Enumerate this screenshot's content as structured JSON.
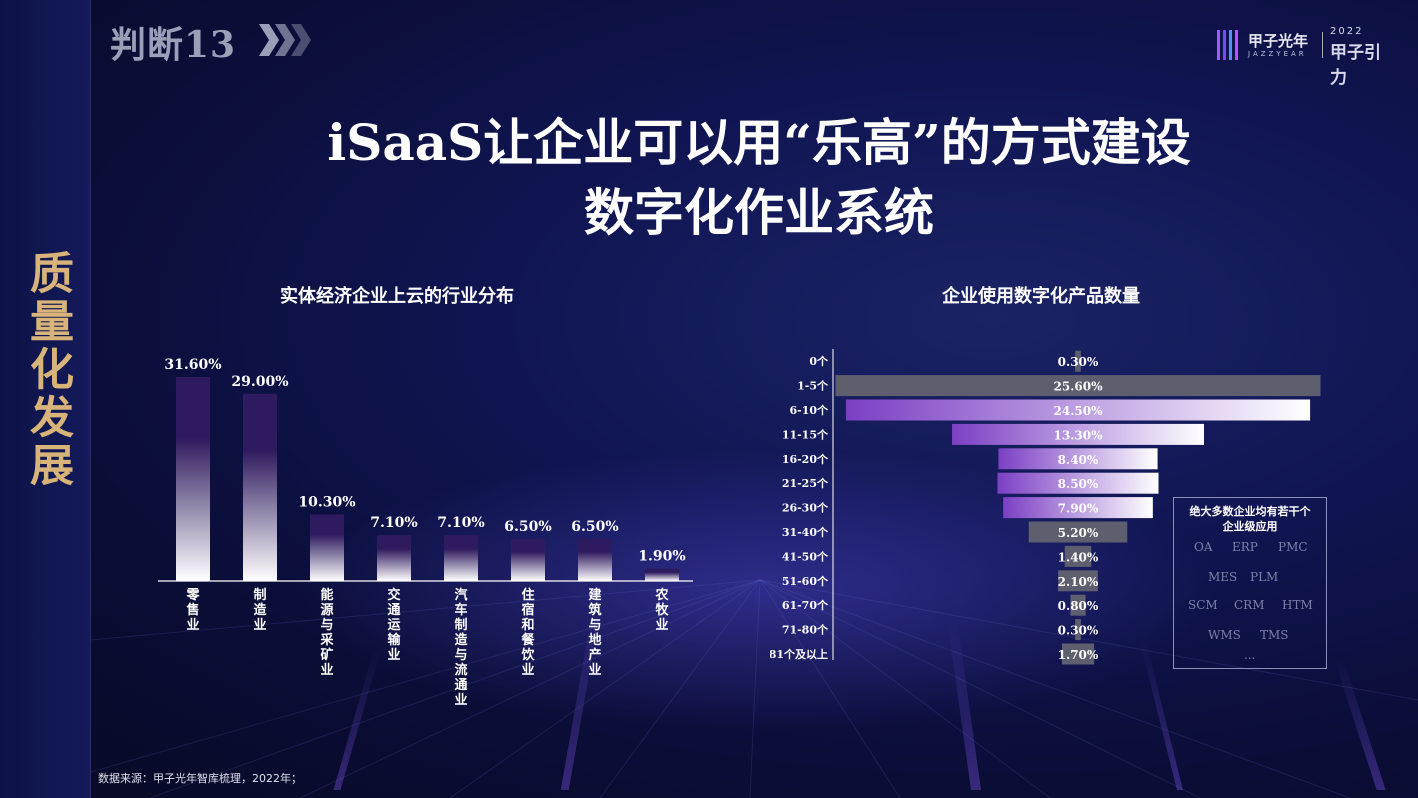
{
  "side_title": "质量化发展",
  "tag": "判断13",
  "logo": {
    "cn": "甲子光年",
    "en": "JAZZYEAR",
    "year": "2022",
    "right": "甲子引力"
  },
  "title_line1": "iSaaS让企业可以用“乐高”的方式建设",
  "title_line2": "数字化作业系统",
  "source": "数据来源：甲子光年智库梳理，2022年；",
  "legend_box": {
    "title_line1": "绝大多数企业均有若干个",
    "title_line2": "企业级应用",
    "apps": [
      "OA",
      "ERP",
      "PMC",
      "MES",
      "PLM",
      "SCM",
      "CRM",
      "HTM",
      "WMS",
      "TMS",
      "..."
    ]
  },
  "chart_data": [
    {
      "type": "bar",
      "title": "实体经济企业上云的行业分布",
      "categories": [
        "零售业",
        "制造业",
        "能源与采矿业",
        "交通运输业",
        "汽车制造与流通业",
        "住宿和餐饮业",
        "建筑与地产业",
        "农牧业"
      ],
      "values": [
        31.6,
        29.0,
        10.3,
        7.1,
        7.1,
        6.5,
        6.5,
        1.9
      ],
      "labels": [
        "31.60%",
        "29.00%",
        "10.30%",
        "7.10%",
        "7.10%",
        "6.50%",
        "6.50%",
        "1.90%"
      ],
      "ylim": [
        0,
        31.6
      ],
      "colors": {
        "top": "#2e1a5e",
        "bottom": "#ffffff"
      }
    },
    {
      "type": "bar",
      "orientation": "horizontal-funnel",
      "title": "企业使用数字化产品数量",
      "categories": [
        "0个",
        "1-5个",
        "6-10个",
        "11-15个",
        "16-20个",
        "21-25个",
        "26-30个",
        "31-40个",
        "41-50个",
        "51-60个",
        "61-70个",
        "71-80个",
        "81个及以上"
      ],
      "values": [
        0.3,
        25.6,
        24.5,
        13.3,
        8.4,
        8.5,
        7.9,
        5.2,
        1.4,
        2.1,
        0.8,
        0.3,
        1.7
      ],
      "labels": [
        "0.30%",
        "25.60%",
        "24.50%",
        "13.30%",
        "8.40%",
        "8.50%",
        "7.90%",
        "5.20%",
        "1.40%",
        "2.10%",
        "0.80%",
        "0.30%",
        "1.70%"
      ],
      "highlight": [
        false,
        false,
        true,
        true,
        true,
        true,
        true,
        false,
        false,
        false,
        false,
        false,
        false
      ],
      "colors": {
        "gray": "#5d5e6e",
        "purple": "#7b3fc4"
      }
    }
  ]
}
